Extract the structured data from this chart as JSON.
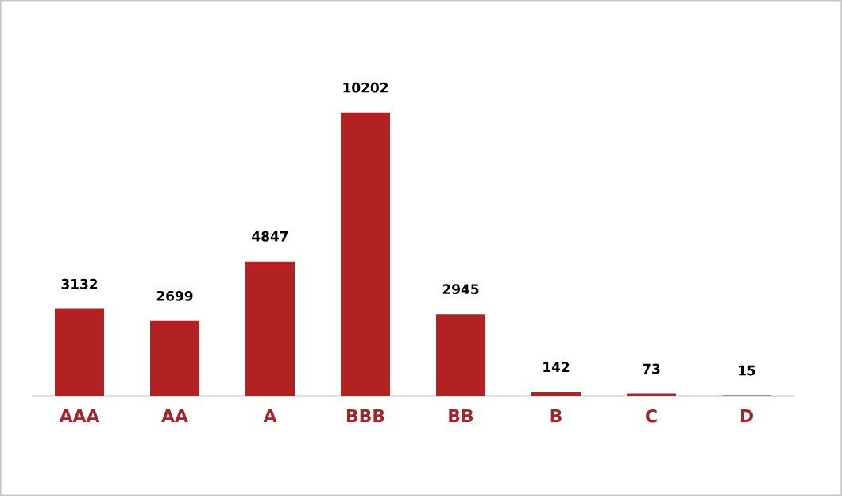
{
  "chart_data": {
    "type": "bar",
    "categories": [
      "AAA",
      "AA",
      "A",
      "BBB",
      "BB",
      "B",
      "C",
      "D"
    ],
    "values": [
      3132,
      2699,
      4847,
      10202,
      2945,
      142,
      73,
      15
    ],
    "color": "#b22222",
    "data_labels": true
  }
}
